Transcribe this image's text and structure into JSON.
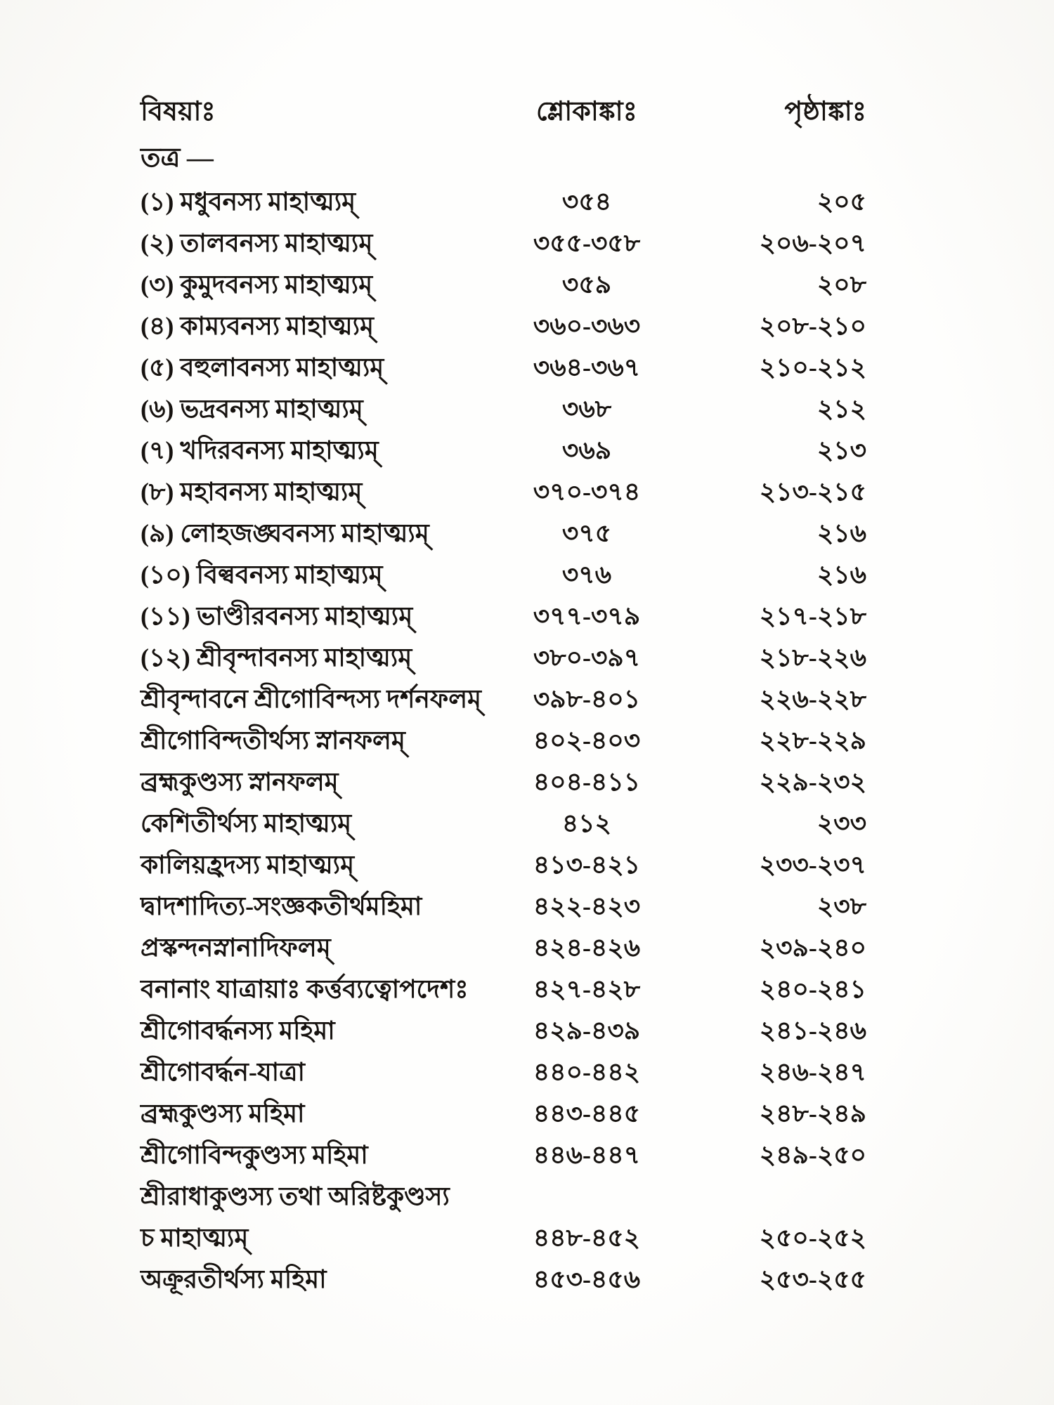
{
  "colors": {
    "page_background": "#fdfdfb",
    "text": "#171310"
  },
  "header": {
    "subject_label": "বিষয়াঃ",
    "verses_label": "শ্লোকাঙ্কাঃ",
    "pages_label": "পৃষ্ঠাঙ্কাঃ"
  },
  "section_marker": "তত্র —",
  "toc_rows": [
    {
      "subject": "(১) মধুবনস্য মাহাত্ম্যম্",
      "verses": "৩৫৪",
      "pages": "২০৫"
    },
    {
      "subject": "(২) তালবনস্য মাহাত্ম্যম্",
      "verses": "৩৫৫-৩৫৮",
      "pages": "২০৬-২০৭"
    },
    {
      "subject": "(৩) কুমুদবনস্য মাহাত্ম্যম্",
      "verses": "৩৫৯",
      "pages": "২০৮"
    },
    {
      "subject": "(৪) কাম্যবনস্য মাহাত্ম্যম্",
      "verses": "৩৬০-৩৬৩",
      "pages": "২০৮-২১০"
    },
    {
      "subject": "(৫) বহুলাবনস্য মাহাত্ম্যম্",
      "verses": "৩৬৪-৩৬৭",
      "pages": "২১০-২১২"
    },
    {
      "subject": "(৬) ভদ্রবনস্য মাহাত্ম্যম্",
      "verses": "৩৬৮",
      "pages": "২১২"
    },
    {
      "subject": "(৭) খদিরবনস্য মাহাত্ম্যম্",
      "verses": "৩৬৯",
      "pages": "২১৩"
    },
    {
      "subject": "(৮) মহাবনস্য মাহাত্ম্যম্",
      "verses": "৩৭০-৩৭৪",
      "pages": "২১৩-২১৫"
    },
    {
      "subject": "(৯) লোহজঙ্ঘবনস্য মাহাত্ম্যম্",
      "verses": "৩৭৫",
      "pages": "২১৬"
    },
    {
      "subject": "(১০) বিল্ববনস্য মাহাত্ম্যম্",
      "verses": "৩৭৬",
      "pages": "২১৬"
    },
    {
      "subject": "(১১) ভাণ্ডীরবনস্য মাহাত্ম্যম্",
      "verses": "৩৭৭-৩৭৯",
      "pages": "২১৭-২১৮"
    },
    {
      "subject": "(১২) শ্রীবৃন্দাবনস্য মাহাত্ম্যম্",
      "verses": "৩৮০-৩৯৭",
      "pages": "২১৮-২২৬"
    },
    {
      "subject": "শ্রীবৃন্দাবনে শ্রীগোবিন্দস্য দর্শনফলম্",
      "verses": "৩৯৮-৪০১",
      "pages": "২২৬-২২৮"
    },
    {
      "subject": "শ্রীগোবিন্দতীর্থস্য স্নানফলম্",
      "verses": "৪০২-৪০৩",
      "pages": "২২৮-২২৯"
    },
    {
      "subject": "ব্রহ্মকুণ্ডস্য স্নানফলম্",
      "verses": "৪০৪-৪১১",
      "pages": "২২৯-২৩২"
    },
    {
      "subject": "কেশিতীর্থস্য মাহাত্ম্যম্",
      "verses": "৪১২",
      "pages": "২৩৩"
    },
    {
      "subject": "কালিয়হ্রদস্য মাহাত্ম্যম্",
      "verses": "৪১৩-৪২১",
      "pages": "২৩৩-২৩৭"
    },
    {
      "subject": "দ্বাদশাদিত্য-সংজ্ঞকতীর্থমহিমা",
      "verses": "৪২২-৪২৩",
      "pages": "২৩৮"
    },
    {
      "subject": "প্রস্কন্দনস্নানাদিফলম্",
      "verses": "৪২৪-৪২৬",
      "pages": "২৩৯-২৪০"
    },
    {
      "subject": "বনানাং যাত্রায়াঃ কর্ত্তব্যত্বোপদেশঃ",
      "verses": "৪২৭-৪২৮",
      "pages": "২৪০-২৪১"
    },
    {
      "subject": "শ্রীগোবর্দ্ধনস্য মহিমা",
      "verses": "৪২৯-৪৩৯",
      "pages": "২৪১-২৪৬"
    },
    {
      "subject": "শ্রীগোবর্দ্ধন-যাত্রা",
      "verses": "৪৪০-৪৪২",
      "pages": "২৪৬-২৪৭"
    },
    {
      "subject": "ব্রহ্মকুণ্ডস্য মহিমা",
      "verses": "৪৪৩-৪৪৫",
      "pages": "২৪৮-২৪৯"
    },
    {
      "subject": "শ্রীগোবিন্দকুণ্ডস্য মহিমা",
      "verses": "৪৪৬-৪৪৭",
      "pages": "২৪৯-২৫০"
    },
    {
      "subject": "শ্রীরাধাকুণ্ডস্য তথা অরিষ্টকুণ্ডস্য",
      "verses": "",
      "pages": ""
    },
    {
      "subject": "চ মাহাত্ম্যম্",
      "verses": "৪৪৮-৪৫২",
      "pages": "২৫০-২৫২"
    },
    {
      "subject": "অক্রূরতীর্থস্য মহিমা",
      "verses": "৪৫৩-৪৫৬",
      "pages": "২৫৩-২৫৫"
    }
  ]
}
